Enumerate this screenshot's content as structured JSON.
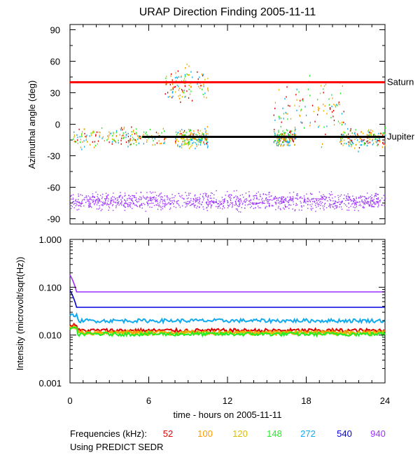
{
  "chart_data": [
    {
      "type": "scatter",
      "title": "URAP Direction Finding  2005-11-11",
      "xlabel": "",
      "ylabel": "Azimuthal angle (deg)",
      "xlim": [
        0,
        24
      ],
      "ylim": [
        -95,
        95
      ],
      "yticks": [
        "90",
        "60",
        "30",
        "0",
        "-30",
        "-60",
        "-90"
      ],
      "yticks_values": [
        90,
        60,
        30,
        0,
        -30,
        -60,
        -90
      ],
      "reference_lines": [
        {
          "name": "Saturn",
          "y": 40,
          "color": "#ff0000"
        },
        {
          "name": "Jupiter",
          "y": -12,
          "color": "#000000"
        }
      ],
      "series": [
        {
          "freq_khz": 940,
          "color": "#9b30ff",
          "band": "dense",
          "center": -73,
          "spread": 8
        },
        {
          "freq_khz": 52,
          "color": "#e00000",
          "band": "sparse",
          "center": -12,
          "spread": 6
        },
        {
          "freq_khz": 100,
          "color": "#ff9900",
          "band": "sparse",
          "center": -12,
          "spread": 6
        },
        {
          "freq_khz": 120,
          "color": "#ddbb00",
          "band": "sparse",
          "center": -12,
          "spread": 6
        },
        {
          "freq_khz": 148,
          "color": "#22ee22",
          "band": "sparse",
          "center": -12,
          "spread": 7
        },
        {
          "freq_khz": 272,
          "color": "#11aaee",
          "band": "sparse",
          "center": -14,
          "spread": 6
        }
      ],
      "bursts": [
        {
          "x_start": 7.2,
          "x_end": 10.5,
          "y_center": 38,
          "spread": 12
        },
        {
          "x_start": 15.5,
          "x_end": 21.0,
          "y_center": 15,
          "spread": 20
        }
      ]
    },
    {
      "type": "line",
      "title": "",
      "xlabel": "time - hours on 2005-11-11",
      "ylabel": "Intensity (microvolt/sqrt(Hz))",
      "xlim": [
        0,
        24
      ],
      "ylim": [
        0.001,
        1.0
      ],
      "yscale": "log",
      "xticks": [
        "0",
        "6",
        "12",
        "18",
        "24"
      ],
      "xticks_values": [
        0,
        6,
        12,
        18,
        24
      ],
      "yticks": [
        "1.000",
        "0.100",
        "0.010",
        "0.001"
      ],
      "yticks_values": [
        1.0,
        0.1,
        0.01,
        0.001
      ],
      "series": [
        {
          "freq_khz": 940,
          "color": "#9b30ff",
          "level": 0.08
        },
        {
          "freq_khz": 540,
          "color": "#0000dd",
          "level": 0.038
        },
        {
          "freq_khz": 272,
          "color": "#11aaee",
          "level": 0.02
        },
        {
          "freq_khz": 52,
          "color": "#e00000",
          "level": 0.0125
        },
        {
          "freq_khz": 100,
          "color": "#ff9900",
          "level": 0.0115
        },
        {
          "freq_khz": 120,
          "color": "#ddbb00",
          "level": 0.011
        },
        {
          "freq_khz": 148,
          "color": "#22ee22",
          "level": 0.0105
        }
      ]
    }
  ],
  "legend": {
    "label": "Frequencies (kHz):",
    "entries": [
      {
        "text": "52",
        "color": "#e00000"
      },
      {
        "text": "100",
        "color": "#ff9900"
      },
      {
        "text": "120",
        "color": "#ddbb00"
      },
      {
        "text": "148",
        "color": "#22ee22"
      },
      {
        "text": "272",
        "color": "#11aaee"
      },
      {
        "text": "540",
        "color": "#0000dd"
      },
      {
        "text": "940",
        "color": "#9b30ff"
      }
    ]
  },
  "footnote": "Using PREDICT SEDR"
}
